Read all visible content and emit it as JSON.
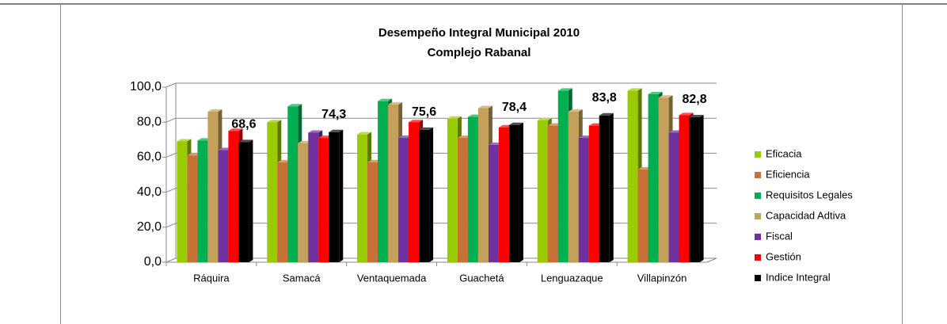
{
  "chart_data": {
    "type": "bar3d",
    "title": "Desempeño Integral Municipal 2010",
    "subtitle": "Complejo Rabanal",
    "categories": [
      "Ráquira",
      "Samacá",
      "Ventaquemada",
      "Guachetá",
      "Lenguazaque",
      "Villapinzón"
    ],
    "series": [
      {
        "name": "Eficacia",
        "color": "#99cc00",
        "values": [
          69,
          80,
          73,
          82,
          81,
          98
        ]
      },
      {
        "name": "Eficiencia",
        "color": "#c87137",
        "values": [
          61,
          57,
          57,
          71,
          78,
          53
        ]
      },
      {
        "name": "Requisitos Legales",
        "color": "#00b050",
        "values": [
          69.5,
          89,
          92,
          83,
          98,
          96
        ]
      },
      {
        "name": "Capacidad Adtiva",
        "color": "#c4a15a",
        "values": [
          86,
          68,
          90,
          88,
          86,
          94
        ]
      },
      {
        "name": "Fiscal",
        "color": "#7030a0",
        "values": [
          64,
          74,
          71,
          67,
          71,
          74
        ]
      },
      {
        "name": "Gestión",
        "color": "#ff0000",
        "values": [
          75,
          71,
          80,
          77,
          78,
          84
        ]
      },
      {
        "name": "Indice Integral",
        "color": "#000000",
        "values": [
          68.6,
          74.3,
          75.6,
          78.4,
          83.8,
          82.8
        ],
        "value_labels": [
          "68,6",
          "74,3",
          "75,6",
          "78,4",
          "83,8",
          "82,8"
        ]
      }
    ],
    "ylim": [
      0,
      100
    ],
    "yticks": [
      {
        "value": 0,
        "label": "0,0"
      },
      {
        "value": 20,
        "label": "20,0"
      },
      {
        "value": 40,
        "label": "40,0"
      },
      {
        "value": 60,
        "label": "60,0"
      },
      {
        "value": 80,
        "label": "80,0"
      },
      {
        "value": 100,
        "label": "100,0"
      }
    ],
    "grid": true,
    "legend": "right"
  }
}
